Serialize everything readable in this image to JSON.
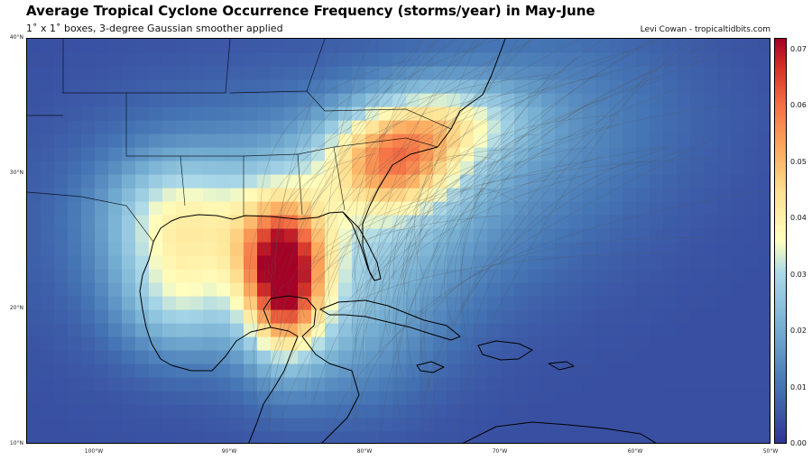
{
  "header": {
    "title": "Average Tropical Cyclone Occurrence Frequency (storms/year) in May-June",
    "subtitle": "1˚ x 1˚ boxes, 3-degree Gaussian smoother applied",
    "credit": "Levi Cowan - tropicaltidbits.com"
  },
  "map": {
    "extent": {
      "lon_min": -105,
      "lon_max": -50,
      "lat_min": 10,
      "lat_max": 40
    },
    "lat_ticks": [
      {
        "value": 40,
        "label": "40°N"
      },
      {
        "value": 30,
        "label": "30°N"
      },
      {
        "value": 20,
        "label": "20°N"
      },
      {
        "value": 10,
        "label": "10°N"
      }
    ],
    "lon_ticks": [
      {
        "value": -100,
        "label": "100°W"
      },
      {
        "value": -90,
        "label": "90°W"
      },
      {
        "value": -80,
        "label": "80°W"
      },
      {
        "value": -70,
        "label": "70°W"
      },
      {
        "value": -60,
        "label": "60°W"
      },
      {
        "value": -50,
        "label": "50°W"
      }
    ],
    "frequency_peak": {
      "value": 0.072,
      "lon": -86,
      "lat": 21
    },
    "colors": {
      "low": "#313695",
      "mid_low": "#4575b4",
      "mid": "#abd9e9",
      "neutral": "#ffffbf",
      "mid_high": "#fdae61",
      "high": "#d73027",
      "max": "#a50026"
    }
  },
  "colorbar": {
    "min": 0.0,
    "max": 0.072,
    "ticks": [
      {
        "value": 0.0,
        "label": "0.00"
      },
      {
        "value": 0.01,
        "label": "0.01"
      },
      {
        "value": 0.02,
        "label": "0.02"
      },
      {
        "value": 0.03,
        "label": "0.03"
      },
      {
        "value": 0.04,
        "label": "0.04"
      },
      {
        "value": 0.05,
        "label": "0.05"
      },
      {
        "value": 0.06,
        "label": "0.06"
      },
      {
        "value": 0.07,
        "label": "0.07"
      }
    ]
  }
}
